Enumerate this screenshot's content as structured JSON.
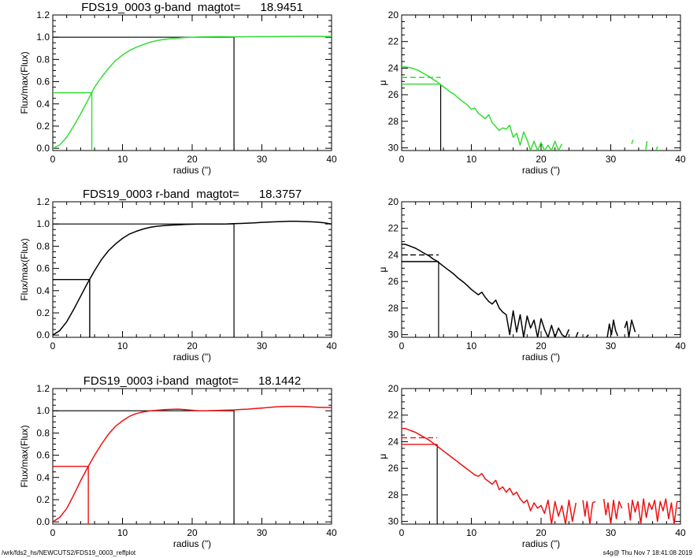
{
  "footer": {
    "path": "/wrk/fds2_hs/NEWCUTS2/FDS19_0003_reffplot",
    "stamp": "s4g@  Thu Nov  7 18:41:08 2019"
  },
  "chart_data": [
    {
      "type": "line",
      "panel": "growth-curve",
      "band": "g",
      "title": "FDS19_0003 g-band  magtot=      18.9451",
      "xlabel": "radius (\")",
      "ylabel": "Flux/max(Flux)",
      "xlim": [
        0,
        40
      ],
      "ylim": [
        -0.02,
        1.2
      ],
      "xticks": [
        "0",
        "10",
        "20",
        "30",
        "40"
      ],
      "yticks": [
        "0.0",
        "0.2",
        "0.4",
        "0.6",
        "0.8",
        "1.0",
        "1.2"
      ],
      "color": "#33dd33",
      "half_light_radius": 5.6,
      "half_light_flux": 0.5,
      "total_radius": 26.0,
      "total_flux": 1.0,
      "series": [
        {
          "x": [
            0,
            1,
            2,
            3,
            4,
            5,
            6,
            7,
            8,
            9,
            10,
            11,
            12,
            13,
            14,
            15,
            16,
            17,
            18,
            19,
            20,
            21,
            22,
            23,
            24,
            25,
            26,
            27,
            28,
            29,
            30,
            31,
            32,
            33,
            34,
            35,
            36,
            37,
            38,
            39,
            40
          ],
          "y": [
            0.0,
            0.03,
            0.1,
            0.2,
            0.31,
            0.43,
            0.55,
            0.64,
            0.72,
            0.79,
            0.84,
            0.88,
            0.91,
            0.935,
            0.955,
            0.97,
            0.98,
            0.987,
            0.993,
            0.997,
            1.0,
            1.002,
            1.003,
            1.004,
            1.005,
            1.004,
            1.003,
            1.003,
            1.004,
            1.005,
            1.005,
            1.006,
            1.006,
            1.007,
            1.007,
            1.008,
            1.008,
            1.008,
            1.008,
            1.007,
            1.007
          ]
        }
      ]
    },
    {
      "type": "line",
      "panel": "surface-brightness",
      "band": "g",
      "title": "",
      "xlabel": "radius (\")",
      "ylabel": "μ",
      "xlim": [
        0,
        40
      ],
      "ylim": [
        30.2,
        20
      ],
      "xticks": [
        "0",
        "10",
        "20",
        "30",
        "40"
      ],
      "yticks": [
        "20",
        "22",
        "24",
        "26",
        "28",
        "30"
      ],
      "color": "#33dd33",
      "half_light_radius": 5.6,
      "mu_eff": 25.2,
      "mu_mean_eff": 24.7,
      "series": [
        {
          "x": [
            0,
            0.5,
            1,
            1.5,
            2,
            2.5,
            3,
            3.5,
            4,
            4.5,
            5,
            5.5,
            6,
            6.5,
            7,
            7.5,
            8,
            8.5,
            9,
            9.5,
            10,
            10.5,
            11,
            11.5,
            12,
            12.5,
            13,
            13.5,
            14,
            14.5,
            15,
            15.5,
            16,
            16.5,
            17,
            17.5,
            18,
            18.5,
            19,
            19.5,
            20,
            20.5,
            21,
            21.5,
            22,
            22.5,
            23
          ],
          "y": [
            23.9,
            23.9,
            23.95,
            24.0,
            24.1,
            24.2,
            24.35,
            24.5,
            24.65,
            24.85,
            25.0,
            25.2,
            25.4,
            25.6,
            25.8,
            25.95,
            26.2,
            26.4,
            26.6,
            26.8,
            27.1,
            27.0,
            27.4,
            27.6,
            27.8,
            27.5,
            28.1,
            28.4,
            28.7,
            28.5,
            28.6,
            28.3,
            29.2,
            28.9,
            29.8,
            28.8,
            29.4,
            30.2,
            29.5,
            30.2,
            29.6,
            30.2,
            29.8,
            30.2,
            29.5,
            30.2,
            29.7
          ]
        },
        {
          "x": [
            33,
            33.2
          ],
          "y": [
            29.7,
            29.4
          ]
        },
        {
          "x": [
            35,
            35.2
          ],
          "y": [
            30.2,
            29.5
          ]
        },
        {
          "x": [
            36.5,
            36.7
          ],
          "y": [
            30.2,
            29.9
          ]
        }
      ]
    },
    {
      "type": "line",
      "panel": "growth-curve",
      "band": "r",
      "title": "FDS19_0003 r-band  magtot=      18.3757",
      "xlabel": "radius (\")",
      "ylabel": "Flux/max(Flux)",
      "xlim": [
        0,
        40
      ],
      "ylim": [
        -0.02,
        1.2
      ],
      "xticks": [
        "0",
        "10",
        "20",
        "30",
        "40"
      ],
      "yticks": [
        "0.0",
        "0.2",
        "0.4",
        "0.6",
        "0.8",
        "1.0",
        "1.2"
      ],
      "color": "#000000",
      "half_light_radius": 5.3,
      "half_light_flux": 0.5,
      "total_radius": 26.0,
      "total_flux": 1.0,
      "series": [
        {
          "x": [
            0,
            1,
            2,
            3,
            4,
            5,
            6,
            7,
            8,
            9,
            10,
            11,
            12,
            13,
            14,
            15,
            16,
            17,
            18,
            19,
            20,
            21,
            22,
            23,
            24,
            25,
            26,
            27,
            28,
            29,
            30,
            31,
            32,
            33,
            34,
            35,
            36,
            37,
            38,
            39,
            40
          ],
          "y": [
            0.0,
            0.04,
            0.12,
            0.23,
            0.35,
            0.47,
            0.58,
            0.68,
            0.76,
            0.82,
            0.87,
            0.91,
            0.935,
            0.955,
            0.97,
            0.98,
            0.985,
            0.99,
            0.993,
            0.996,
            0.998,
            0.999,
            1.0,
            1.0,
            1.0,
            1.001,
            1.003,
            1.005,
            1.008,
            1.01,
            1.015,
            1.018,
            1.02,
            1.022,
            1.025,
            1.024,
            1.022,
            1.02,
            1.016,
            1.01,
            1.0
          ]
        }
      ]
    },
    {
      "type": "line",
      "panel": "surface-brightness",
      "band": "r",
      "title": "",
      "xlabel": "radius (\")",
      "ylabel": "μ",
      "xlim": [
        0,
        40
      ],
      "ylim": [
        30.2,
        20
      ],
      "xticks": [
        "0",
        "10",
        "20",
        "30",
        "40"
      ],
      "yticks": [
        "20",
        "22",
        "24",
        "26",
        "28",
        "30"
      ],
      "color": "#000000",
      "half_light_radius": 5.3,
      "mu_eff": 24.5,
      "mu_mean_eff": 24.0,
      "series": [
        {
          "x": [
            0,
            0.5,
            1,
            1.5,
            2,
            2.5,
            3,
            3.5,
            4,
            4.5,
            5,
            5.5,
            6,
            6.5,
            7,
            7.5,
            8,
            8.5,
            9,
            9.5,
            10,
            10.5,
            11,
            11.5,
            12,
            12.5,
            13,
            13.5,
            14,
            14.5,
            15,
            15.5,
            16,
            16.5,
            17,
            17.5,
            18,
            18.5,
            19,
            19.5,
            20,
            20.5,
            21,
            21.5,
            22,
            22.5,
            23,
            23.5,
            24
          ],
          "y": [
            23.2,
            23.2,
            23.3,
            23.4,
            23.5,
            23.65,
            23.8,
            23.95,
            24.1,
            24.3,
            24.45,
            24.65,
            24.85,
            25.05,
            25.25,
            25.45,
            25.7,
            25.9,
            26.1,
            26.35,
            26.6,
            26.8,
            27.0,
            26.8,
            27.2,
            27.5,
            27.7,
            27.4,
            28.0,
            28.3,
            28.5,
            30.0,
            28.2,
            29.8,
            28.5,
            30.2,
            28.6,
            29.5,
            28.9,
            30.2,
            28.8,
            29.6,
            30.2,
            29.3,
            30.2,
            29.5,
            30.0,
            30.2,
            29.6
          ]
        },
        {
          "x": [
            25,
            25.3
          ],
          "y": [
            30.2,
            29.8
          ]
        },
        {
          "x": [
            26.5,
            26.8
          ],
          "y": [
            30.2,
            30.0
          ]
        },
        {
          "x": [
            29.5,
            29.8,
            30.1,
            30.4,
            30.7,
            31.0
          ],
          "y": [
            30.2,
            29.2,
            30.0,
            28.9,
            29.7,
            30.1
          ]
        },
        {
          "x": [
            32,
            32.3,
            32.6,
            33,
            33.5
          ],
          "y": [
            29.5,
            29.0,
            30.2,
            28.9,
            29.8
          ]
        }
      ]
    },
    {
      "type": "line",
      "panel": "growth-curve",
      "band": "i",
      "title": "FDS19_0003 i-band  magtot=      18.1442",
      "xlabel": "radius (\")",
      "ylabel": "Flux/max(Flux)",
      "xlim": [
        0,
        40
      ],
      "ylim": [
        -0.02,
        1.2
      ],
      "xticks": [
        "0",
        "10",
        "20",
        "30",
        "40"
      ],
      "yticks": [
        "0.0",
        "0.2",
        "0.4",
        "0.6",
        "0.8",
        "1.0",
        "1.2"
      ],
      "color": "#ee1111",
      "half_light_radius": 5.1,
      "half_light_flux": 0.5,
      "total_radius": 26.0,
      "total_flux": 1.0,
      "series": [
        {
          "x": [
            0,
            1,
            2,
            3,
            4,
            5,
            6,
            7,
            8,
            9,
            10,
            11,
            12,
            13,
            14,
            15,
            16,
            17,
            18,
            19,
            20,
            21,
            22,
            23,
            24,
            25,
            26,
            27,
            28,
            29,
            30,
            31,
            32,
            33,
            34,
            35,
            36,
            37,
            38,
            39,
            40
          ],
          "y": [
            0.0,
            0.04,
            0.12,
            0.24,
            0.37,
            0.49,
            0.6,
            0.7,
            0.79,
            0.86,
            0.91,
            0.95,
            0.975,
            0.99,
            1.0,
            1.005,
            1.01,
            1.013,
            1.015,
            1.01,
            1.005,
            1.0,
            1.0,
            1.002,
            1.004,
            1.006,
            1.008,
            1.012,
            1.015,
            1.02,
            1.025,
            1.03,
            1.035,
            1.038,
            1.04,
            1.04,
            1.038,
            1.035,
            1.032,
            1.03,
            1.03
          ]
        }
      ]
    },
    {
      "type": "line",
      "panel": "surface-brightness",
      "band": "i",
      "title": "",
      "xlabel": "radius (\")",
      "ylabel": "μ",
      "xlim": [
        0,
        40
      ],
      "ylim": [
        30.2,
        20
      ],
      "xticks": [
        "0",
        "10",
        "20",
        "30",
        "40"
      ],
      "yticks": [
        "20",
        "22",
        "24",
        "26",
        "28",
        "30"
      ],
      "color": "#ee1111",
      "half_light_radius": 5.1,
      "mu_eff": 24.2,
      "mu_mean_eff": 23.7,
      "series": [
        {
          "x": [
            0,
            0.5,
            1,
            1.5,
            2,
            2.5,
            3,
            3.5,
            4,
            4.5,
            5,
            5.5,
            6,
            6.5,
            7,
            7.5,
            8,
            8.5,
            9,
            9.5,
            10,
            10.5,
            11,
            11.5,
            12,
            12.5,
            13,
            13.5,
            14,
            14.5,
            15,
            15.5,
            16,
            16.5,
            17,
            17.5,
            18,
            18.5,
            19,
            19.5,
            20,
            20.5,
            21,
            21.5,
            22,
            22.5,
            23,
            23.5,
            24,
            24.5,
            25
          ],
          "y": [
            23.0,
            23.0,
            23.1,
            23.2,
            23.3,
            23.45,
            23.6,
            23.75,
            23.9,
            24.1,
            24.3,
            24.5,
            24.7,
            24.9,
            25.1,
            25.3,
            25.5,
            25.7,
            25.9,
            26.1,
            26.3,
            26.5,
            26.6,
            26.4,
            26.8,
            27.0,
            27.2,
            26.9,
            27.6,
            27.4,
            27.8,
            27.5,
            28.0,
            27.8,
            28.3,
            28.6,
            28.4,
            29.2,
            28.6,
            29.0,
            28.8,
            29.4,
            28.4,
            30.2,
            28.5,
            29.6,
            28.8,
            30.2,
            28.4,
            30.0,
            28.6
          ]
        },
        {
          "x": [
            26,
            26.3,
            26.6,
            27,
            27.4,
            27.8
          ],
          "y": [
            28.4,
            29.6,
            28.5,
            30.2,
            28.6,
            28.5
          ]
        },
        {
          "x": [
            29,
            29.3,
            29.6,
            30,
            30.4,
            30.8,
            31.2,
            31.6
          ],
          "y": [
            28.3,
            29.5,
            28.6,
            30.2,
            28.4,
            29.8,
            28.5,
            29.0
          ]
        },
        {
          "x": [
            32.5,
            32.8,
            33.1,
            33.5,
            33.9,
            34.3,
            34.7,
            35.1,
            35.5,
            35.9,
            36.3,
            36.7,
            37.1,
            37.5,
            37.9,
            38.3,
            38.7,
            39.1,
            39.5
          ],
          "y": [
            28.6,
            29.9,
            28.4,
            29.3,
            28.5,
            30.2,
            28.3,
            29.7,
            28.6,
            29.1,
            28.4,
            30.0,
            28.5,
            29.2,
            28.3,
            29.8,
            28.6,
            30.2,
            28.5
          ]
        }
      ]
    }
  ]
}
